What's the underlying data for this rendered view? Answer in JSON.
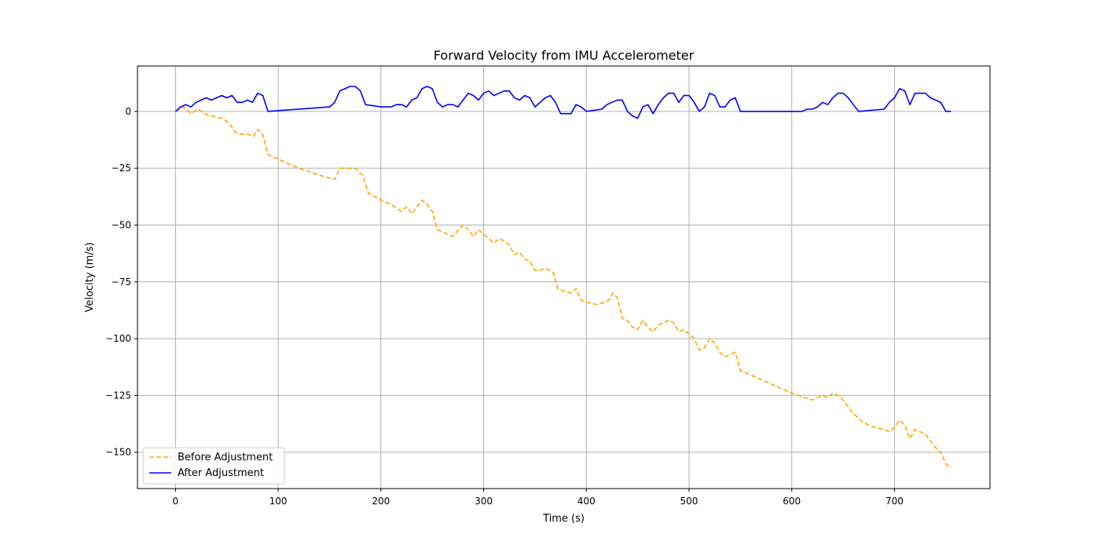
{
  "chart_data": {
    "type": "line",
    "title": "Forward Velocity from IMU Accelerometer",
    "xlabel": "Time (s)",
    "ylabel": "Velocity (m/s)",
    "xlim": [
      -37,
      793
    ],
    "ylim": [
      -166,
      20
    ],
    "xticks": [
      0,
      100,
      200,
      300,
      400,
      500,
      600,
      700
    ],
    "yticks": [
      0,
      -25,
      -50,
      -75,
      -100,
      -125,
      -150
    ],
    "grid": true,
    "legend_position": "lower-left",
    "series": [
      {
        "name": "Before Adjustment",
        "color": "#ffa500",
        "style": "dashed",
        "x": [
          0,
          8,
          15,
          22,
          28,
          35,
          45,
          52,
          58,
          62,
          70,
          76,
          80,
          85,
          90,
          100,
          120,
          140,
          155,
          160,
          168,
          175,
          182,
          188,
          200,
          210,
          220,
          225,
          230,
          235,
          240,
          245,
          250,
          255,
          260,
          265,
          270,
          280,
          285,
          290,
          295,
          300,
          310,
          315,
          320,
          325,
          330,
          335,
          340,
          345,
          350,
          355,
          360,
          368,
          372,
          378,
          385,
          390,
          395,
          400,
          410,
          418,
          422,
          426,
          430,
          435,
          440,
          445,
          450,
          455,
          460,
          465,
          470,
          475,
          480,
          485,
          490,
          495,
          500,
          505,
          510,
          515,
          520,
          525,
          530,
          535,
          540,
          545,
          550,
          560,
          580,
          600,
          620,
          625,
          630,
          635,
          640,
          645,
          650,
          655,
          660,
          670,
          680,
          690,
          695,
          700,
          705,
          710,
          715,
          720,
          725,
          730,
          735,
          740,
          745,
          750,
          755
        ],
        "values": [
          0,
          2,
          -1,
          1,
          -1,
          -2,
          -3,
          -5,
          -9,
          -10,
          -10,
          -11,
          -8,
          -10,
          -19,
          -21,
          -25,
          -28,
          -30,
          -25,
          -25,
          -25,
          -28,
          -36,
          -39,
          -41,
          -44,
          -42,
          -45,
          -42,
          -39,
          -41,
          -44,
          -52,
          -53,
          -54,
          -55,
          -50,
          -52,
          -55,
          -52,
          -54,
          -58,
          -56,
          -57,
          -59,
          -63,
          -62,
          -65,
          -66,
          -70,
          -70,
          -69,
          -71,
          -78,
          -79,
          -80,
          -78,
          -83,
          -84,
          -85,
          -84,
          -83,
          -80,
          -82,
          -91,
          -92,
          -95,
          -96,
          -92,
          -95,
          -97,
          -94,
          -93,
          -92,
          -93,
          -97,
          -96,
          -98,
          -100,
          -105,
          -104,
          -100,
          -102,
          -106,
          -108,
          -107,
          -106,
          -114,
          -116,
          -120,
          -124,
          -127,
          -126,
          -125,
          -126,
          -124,
          -125,
          -127,
          -130,
          -133,
          -137,
          -139,
          -140,
          -141,
          -139,
          -136,
          -138,
          -144,
          -140,
          -141,
          -142,
          -145,
          -148,
          -150,
          -155,
          -157
        ]
      },
      {
        "name": "After Adjustment",
        "color": "#0000ff",
        "style": "solid",
        "x": [
          0,
          5,
          10,
          15,
          20,
          25,
          30,
          35,
          40,
          45,
          50,
          55,
          60,
          65,
          70,
          75,
          80,
          85,
          90,
          150,
          155,
          160,
          165,
          170,
          175,
          180,
          185,
          200,
          210,
          215,
          220,
          225,
          230,
          235,
          240,
          245,
          250,
          255,
          260,
          265,
          270,
          275,
          280,
          285,
          290,
          295,
          300,
          305,
          310,
          315,
          320,
          325,
          330,
          335,
          340,
          345,
          350,
          355,
          360,
          365,
          370,
          375,
          380,
          385,
          390,
          395,
          400,
          415,
          420,
          425,
          430,
          435,
          440,
          445,
          450,
          455,
          460,
          465,
          470,
          475,
          480,
          485,
          490,
          495,
          500,
          505,
          510,
          515,
          520,
          525,
          530,
          535,
          540,
          545,
          550,
          580,
          610,
          615,
          620,
          625,
          630,
          635,
          640,
          645,
          650,
          655,
          660,
          665,
          690,
          695,
          700,
          705,
          710,
          715,
          720,
          725,
          730,
          735,
          740,
          745,
          750,
          755
        ],
        "values": [
          0,
          2,
          3,
          2,
          4,
          5,
          6,
          5,
          6,
          7,
          6,
          7,
          4,
          4,
          5,
          4,
          8,
          7,
          0,
          2,
          4,
          9,
          10,
          11,
          11,
          9,
          3,
          2,
          2,
          3,
          3,
          2,
          5,
          6,
          10,
          11,
          10,
          4,
          2,
          3,
          3,
          2,
          5,
          8,
          7,
          5,
          8,
          9,
          7,
          8,
          9,
          9,
          6,
          5,
          7,
          6,
          2,
          4,
          6,
          7,
          4,
          -1,
          -1,
          -1,
          3,
          2,
          0,
          1,
          3,
          4,
          5,
          5,
          0,
          -2,
          -3,
          2,
          3,
          -1,
          3,
          6,
          8,
          8,
          4,
          7,
          7,
          4,
          0,
          2,
          8,
          7,
          2,
          2,
          5,
          6,
          0,
          0,
          0,
          1,
          1,
          2,
          4,
          3,
          6,
          8,
          8,
          6,
          3,
          0,
          1,
          4,
          6,
          10,
          9,
          3,
          8,
          8,
          8,
          6,
          5,
          4,
          0,
          0
        ]
      }
    ]
  }
}
